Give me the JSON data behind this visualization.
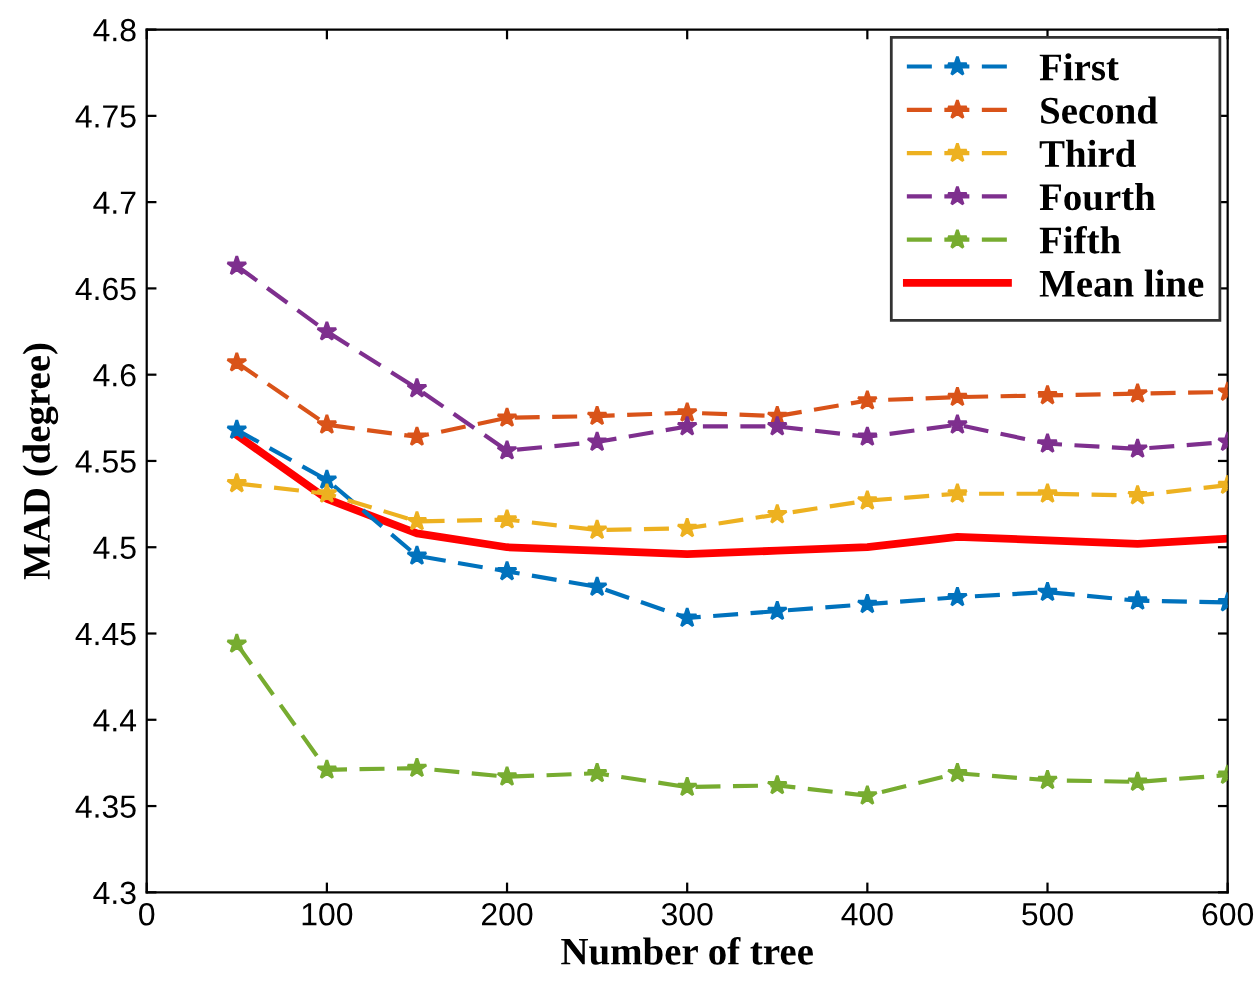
{
  "chart_data": {
    "type": "line",
    "xlabel": "Number of tree",
    "ylabel": "MAD (degree)",
    "x": [
      50,
      100,
      150,
      200,
      250,
      300,
      350,
      400,
      450,
      500,
      550,
      600
    ],
    "xlim": [
      0,
      600
    ],
    "xticks": [
      0,
      100,
      200,
      300,
      400,
      500,
      600
    ],
    "ylim": [
      4.3,
      4.8
    ],
    "yticks": [
      4.3,
      4.35,
      4.4,
      4.45,
      4.5,
      4.55,
      4.6,
      4.65,
      4.7,
      4.75,
      4.8
    ],
    "grid": false,
    "legend": "top right",
    "series": [
      {
        "name": "First",
        "color": "#0072bd",
        "marker": "star",
        "line_style": "dashed",
        "values": [
          4.568,
          4.539,
          4.495,
          4.486,
          4.477,
          4.459,
          4.463,
          4.467,
          4.471,
          4.474,
          4.469,
          4.468
        ]
      },
      {
        "name": "Second",
        "color": "#d95319",
        "marker": "star",
        "line_style": "dashed",
        "values": [
          4.607,
          4.571,
          4.564,
          4.575,
          4.576,
          4.578,
          4.576,
          4.585,
          4.587,
          4.588,
          4.589,
          4.59
        ]
      },
      {
        "name": "Third",
        "color": "#edb120",
        "marker": "star",
        "line_style": "dashed",
        "values": [
          4.537,
          4.531,
          4.515,
          4.516,
          4.51,
          4.511,
          4.519,
          4.527,
          4.531,
          4.531,
          4.53,
          4.536
        ]
      },
      {
        "name": "Fourth",
        "color": "#7e2f8e",
        "marker": "star",
        "line_style": "dashed",
        "values": [
          4.663,
          4.625,
          4.592,
          4.556,
          4.561,
          4.57,
          4.57,
          4.564,
          4.571,
          4.56,
          4.557,
          4.561
        ]
      },
      {
        "name": "Fifth",
        "color": "#77ac30",
        "marker": "star",
        "line_style": "dashed",
        "values": [
          4.444,
          4.371,
          4.372,
          4.367,
          4.369,
          4.361,
          4.362,
          4.356,
          4.369,
          4.365,
          4.364,
          4.368
        ]
      },
      {
        "name": "Mean line",
        "color": "#ff0000",
        "marker": "none",
        "line_style": "solid",
        "values": [
          4.565,
          4.528,
          4.508,
          4.5,
          4.498,
          4.496,
          4.498,
          4.5,
          4.506,
          4.504,
          4.502,
          4.505
        ]
      }
    ]
  }
}
